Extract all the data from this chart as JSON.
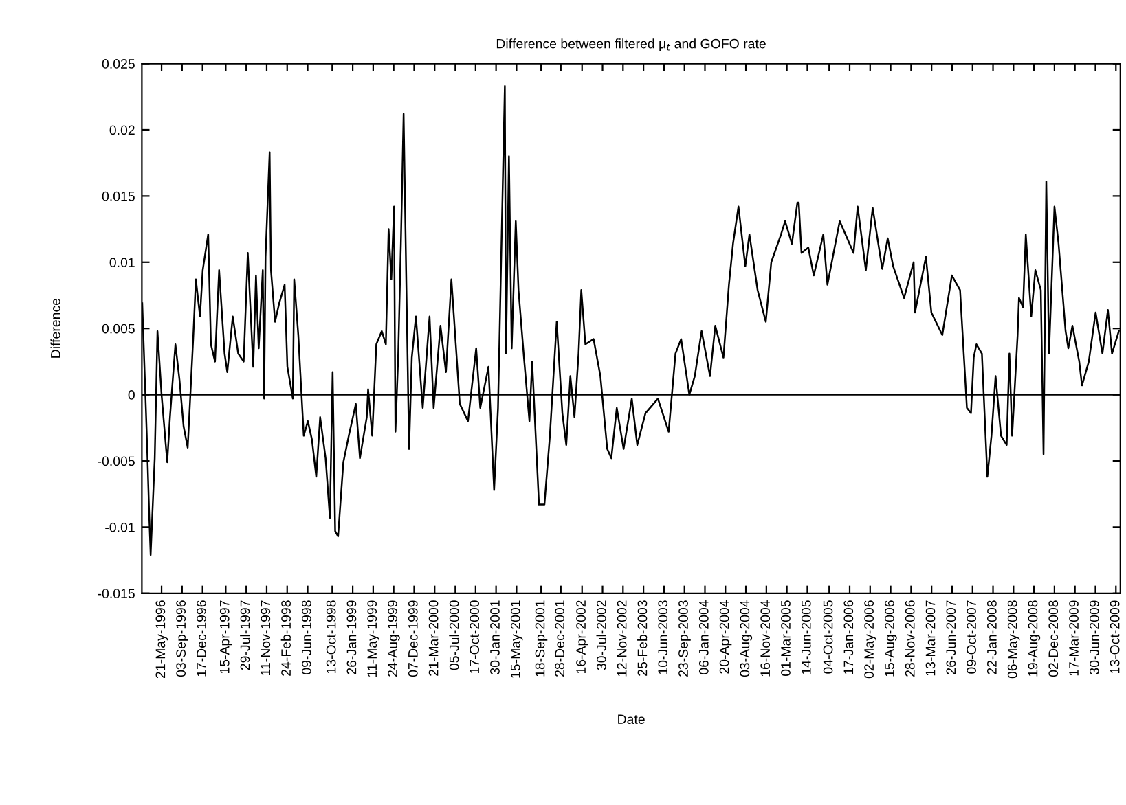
{
  "chart_data": {
    "type": "line",
    "title": "Difference between filtered μ$_{t}$ and GOFO rate",
    "xlabel": "Date",
    "ylabel": "Difference",
    "xlim": [
      "1996-02-10",
      "2009-11-05"
    ],
    "ylim": [
      -0.015,
      0.025
    ],
    "yticks": [
      -0.015,
      -0.01,
      -0.005,
      0,
      0.005,
      0.01,
      0.015,
      0.02,
      0.025
    ],
    "xticks": [
      {
        "value": "1996-05-21",
        "label": "21-May-1996"
      },
      {
        "value": "1996-09-03",
        "label": "03-Sep-1996"
      },
      {
        "value": "1996-12-17",
        "label": "17-Dec-1996"
      },
      {
        "value": "1997-04-15",
        "label": "15-Apr-1997"
      },
      {
        "value": "1997-07-29",
        "label": "29-Jul-1997"
      },
      {
        "value": "1997-11-11",
        "label": "11-Nov-1997"
      },
      {
        "value": "1998-02-24",
        "label": "24-Feb-1998"
      },
      {
        "value": "1998-06-09",
        "label": "09-Jun-1998"
      },
      {
        "value": "1998-10-13",
        "label": "13-Oct-1998"
      },
      {
        "value": "1999-01-26",
        "label": "26-Jan-1999"
      },
      {
        "value": "1999-05-11",
        "label": "11-May-1999"
      },
      {
        "value": "1999-08-24",
        "label": "24-Aug-1999"
      },
      {
        "value": "1999-12-07",
        "label": "07-Dec-1999"
      },
      {
        "value": "2000-03-21",
        "label": "21-Mar-2000"
      },
      {
        "value": "2000-07-05",
        "label": "05-Jul-2000"
      },
      {
        "value": "2000-10-17",
        "label": "17-Oct-2000"
      },
      {
        "value": "2001-01-30",
        "label": "30-Jan-2001"
      },
      {
        "value": "2001-05-15",
        "label": "15-May-2001"
      },
      {
        "value": "2001-09-18",
        "label": "18-Sep-2001"
      },
      {
        "value": "2001-12-28",
        "label": "28-Dec-2001"
      },
      {
        "value": "2002-04-16",
        "label": "16-Apr-2002"
      },
      {
        "value": "2002-07-30",
        "label": "30-Jul-2002"
      },
      {
        "value": "2002-11-12",
        "label": "12-Nov-2002"
      },
      {
        "value": "2003-02-25",
        "label": "25-Feb-2003"
      },
      {
        "value": "2003-06-10",
        "label": "10-Jun-2003"
      },
      {
        "value": "2003-09-23",
        "label": "23-Sep-2003"
      },
      {
        "value": "2004-01-06",
        "label": "06-Jan-2004"
      },
      {
        "value": "2004-04-20",
        "label": "20-Apr-2004"
      },
      {
        "value": "2004-08-03",
        "label": "03-Aug-2004"
      },
      {
        "value": "2004-11-16",
        "label": "16-Nov-2004"
      },
      {
        "value": "2005-03-01",
        "label": "01-Mar-2005"
      },
      {
        "value": "2005-06-14",
        "label": "14-Jun-2005"
      },
      {
        "value": "2005-10-04",
        "label": "04-Oct-2005"
      },
      {
        "value": "2006-01-17",
        "label": "17-Jan-2006"
      },
      {
        "value": "2006-05-02",
        "label": "02-May-2006"
      },
      {
        "value": "2006-08-15",
        "label": "15-Aug-2006"
      },
      {
        "value": "2006-11-28",
        "label": "28-Nov-2006"
      },
      {
        "value": "2007-03-13",
        "label": "13-Mar-2007"
      },
      {
        "value": "2007-06-26",
        "label": "26-Jun-2007"
      },
      {
        "value": "2007-10-09",
        "label": "09-Oct-2007"
      },
      {
        "value": "2008-01-22",
        "label": "22-Jan-2008"
      },
      {
        "value": "2008-05-06",
        "label": "06-May-2008"
      },
      {
        "value": "2008-08-19",
        "label": "19-Aug-2008"
      },
      {
        "value": "2008-12-02",
        "label": "02-Dec-2008"
      },
      {
        "value": "2009-03-17",
        "label": "17-Mar-2009"
      },
      {
        "value": "2009-06-30",
        "label": "30-Jun-2009"
      },
      {
        "value": "2009-10-13",
        "label": "13-Oct-2009"
      }
    ],
    "grid": false,
    "marker": "none",
    "line_style": "solid",
    "ref_lines": [
      {
        "axis": "y",
        "value": 0,
        "color": "#000000"
      }
    ],
    "series": [
      {
        "color": "#000000",
        "x": [
          "1996-02-12",
          "1996-03-06",
          "1996-03-19",
          "1996-03-26",
          "1996-04-16",
          "1996-04-30",
          "1996-05-21",
          "1996-06-19",
          "1996-07-03",
          "1996-07-31",
          "1996-08-21",
          "1996-09-11",
          "1996-10-02",
          "1996-10-30",
          "1996-11-13",
          "1996-12-04",
          "1996-12-18",
          "1997-01-15",
          "1997-01-29",
          "1997-02-19",
          "1997-03-12",
          "1997-04-09",
          "1997-04-23",
          "1997-05-21",
          "1997-06-18",
          "1997-07-16",
          "1997-08-06",
          "1997-09-03",
          "1997-09-17",
          "1997-10-01",
          "1997-10-22",
          "1997-10-29",
          "1997-11-05",
          "1997-11-26",
          "1997-12-03",
          "1997-12-24",
          "1998-01-14",
          "1998-02-11",
          "1998-02-25",
          "1998-03-25",
          "1998-04-01",
          "1998-04-22",
          "1998-05-20",
          "1998-06-10",
          "1998-07-01",
          "1998-07-23",
          "1998-08-12",
          "1998-09-09",
          "1998-10-01",
          "1998-10-15",
          "1998-10-28",
          "1998-11-12",
          "1998-12-09",
          "1999-01-06",
          "1999-02-11",
          "1999-03-04",
          "1999-04-08",
          "1999-04-15",
          "1999-05-06",
          "1999-05-27",
          "1999-06-24",
          "1999-07-15",
          "1999-07-29",
          "1999-08-12",
          "1999-08-26",
          "1999-09-02",
          "1999-09-16",
          "1999-09-30",
          "1999-10-14",
          "1999-10-28",
          "1999-11-11",
          "1999-11-25",
          "1999-12-16",
          "2000-01-20",
          "2000-02-24",
          "2000-03-16",
          "2000-04-20",
          "2000-05-18",
          "2000-06-15",
          "2000-07-28",
          "2000-09-08",
          "2000-10-20",
          "2000-11-10",
          "2000-12-22",
          "2001-01-20",
          "2001-02-09",
          "2001-03-16",
          "2001-03-22",
          "2001-04-06",
          "2001-04-20",
          "2001-05-11",
          "2001-05-25",
          "2001-06-22",
          "2001-07-20",
          "2001-08-03",
          "2001-09-07",
          "2001-10-05",
          "2001-11-02",
          "2001-12-07",
          "2002-01-05",
          "2002-01-25",
          "2002-02-15",
          "2002-03-08",
          "2002-03-29",
          "2002-04-12",
          "2002-05-03",
          "2002-06-14",
          "2002-07-19",
          "2002-08-23",
          "2002-09-13",
          "2002-10-11",
          "2002-11-15",
          "2002-12-27",
          "2003-01-24",
          "2003-03-07",
          "2003-05-10",
          "2003-07-04",
          "2003-08-08",
          "2003-09-06",
          "2003-10-18",
          "2003-11-15",
          "2003-12-20",
          "2004-02-01",
          "2004-02-28",
          "2004-04-10",
          "2004-05-08",
          "2004-05-29",
          "2004-06-26",
          "2004-07-31",
          "2004-08-21",
          "2004-10-02",
          "2004-11-13",
          "2004-12-11",
          "2005-01-30",
          "2005-02-20",
          "2005-03-27",
          "2005-04-24",
          "2005-05-01",
          "2005-05-15",
          "2005-06-19",
          "2005-07-17",
          "2005-09-04",
          "2005-09-25",
          "2005-11-27",
          "2006-02-06",
          "2006-02-27",
          "2006-04-10",
          "2006-05-15",
          "2006-07-03",
          "2006-07-31",
          "2006-08-28",
          "2006-10-23",
          "2006-12-11",
          "2006-12-18",
          "2007-02-12",
          "2007-03-12",
          "2007-05-07",
          "2007-06-25",
          "2007-08-06",
          "2007-09-10",
          "2007-10-01",
          "2007-10-15",
          "2007-10-29",
          "2007-11-26",
          "2007-12-24",
          "2008-01-14",
          "2008-02-04",
          "2008-03-03",
          "2008-04-01",
          "2008-04-15",
          "2008-04-29",
          "2008-05-27",
          "2008-06-03",
          "2008-06-24",
          "2008-07-08",
          "2008-08-05",
          "2008-08-26",
          "2008-09-23",
          "2008-10-07",
          "2008-10-21",
          "2008-11-04",
          "2008-12-02",
          "2008-12-23",
          "2009-01-28",
          "2009-02-11",
          "2009-03-04",
          "2009-04-08",
          "2009-04-22",
          "2009-05-27",
          "2009-07-01",
          "2009-08-05",
          "2009-09-02",
          "2009-09-23",
          "2009-10-28"
        ],
        "values": [
          0.0069,
          -0.003,
          -0.0093,
          -0.0121,
          -0.0048,
          0.0048,
          0.0,
          -0.0051,
          -0.0017,
          0.0038,
          0.0011,
          -0.0024,
          -0.004,
          0.0042,
          0.0087,
          0.0059,
          0.0094,
          0.0121,
          0.0038,
          0.0025,
          0.0094,
          0.0031,
          0.0017,
          0.0059,
          0.0031,
          0.0025,
          0.0107,
          0.0021,
          0.009,
          0.0035,
          0.0094,
          -0.0003,
          0.0104,
          0.0183,
          0.0094,
          0.0055,
          0.0069,
          0.0083,
          0.0021,
          -0.0003,
          0.0087,
          0.0045,
          -0.0031,
          -0.002,
          -0.0034,
          -0.0062,
          -0.0017,
          -0.0048,
          -0.0093,
          0.0017,
          -0.0103,
          -0.0107,
          -0.0051,
          -0.0031,
          -0.0007,
          -0.0048,
          -0.0017,
          0.0004,
          -0.0031,
          0.0038,
          0.0048,
          0.0038,
          0.0125,
          0.0087,
          0.0142,
          -0.0028,
          0.0028,
          0.0114,
          0.0212,
          0.0083,
          -0.0041,
          0.0028,
          0.0059,
          -0.001,
          0.0059,
          -0.001,
          0.0052,
          0.0017,
          0.0087,
          -0.0007,
          -0.002,
          0.0035,
          -0.001,
          0.0021,
          -0.0072,
          -0.001,
          0.0233,
          0.0031,
          0.018,
          0.0035,
          0.0131,
          0.0079,
          0.0028,
          -0.002,
          0.0025,
          -0.0083,
          -0.0083,
          -0.0031,
          0.0055,
          -0.0014,
          -0.0038,
          0.0014,
          -0.0017,
          0.0031,
          0.0079,
          0.0038,
          0.0042,
          0.0014,
          -0.0041,
          -0.0048,
          -0.001,
          -0.0041,
          -0.0003,
          -0.0038,
          -0.0014,
          -0.0003,
          -0.0028,
          0.0031,
          0.0042,
          0.0,
          0.0014,
          0.0048,
          0.0014,
          0.0052,
          0.0028,
          0.0083,
          0.0114,
          0.0142,
          0.0097,
          0.0121,
          0.0079,
          0.0055,
          0.01,
          0.0121,
          0.0131,
          0.0114,
          0.0145,
          0.0145,
          0.0107,
          0.0111,
          0.009,
          0.0121,
          0.0083,
          0.0131,
          0.0107,
          0.0142,
          0.0094,
          0.0141,
          0.0095,
          0.0118,
          0.0097,
          0.0073,
          0.01,
          0.0062,
          0.0104,
          0.0062,
          0.0045,
          0.009,
          0.0079,
          -0.001,
          -0.0014,
          0.0028,
          0.0038,
          0.0031,
          -0.0062,
          -0.0031,
          0.0014,
          -0.0031,
          -0.0038,
          0.0031,
          -0.0031,
          0.0045,
          0.0073,
          0.0066,
          0.0121,
          0.0059,
          0.0094,
          0.0079,
          -0.0045,
          0.0161,
          0.0031,
          0.0142,
          0.0114,
          0.0048,
          0.0035,
          0.0052,
          0.0025,
          0.0007,
          0.0025,
          0.0062,
          0.0031,
          0.0064,
          0.0031,
          0.0048
        ]
      }
    ]
  }
}
